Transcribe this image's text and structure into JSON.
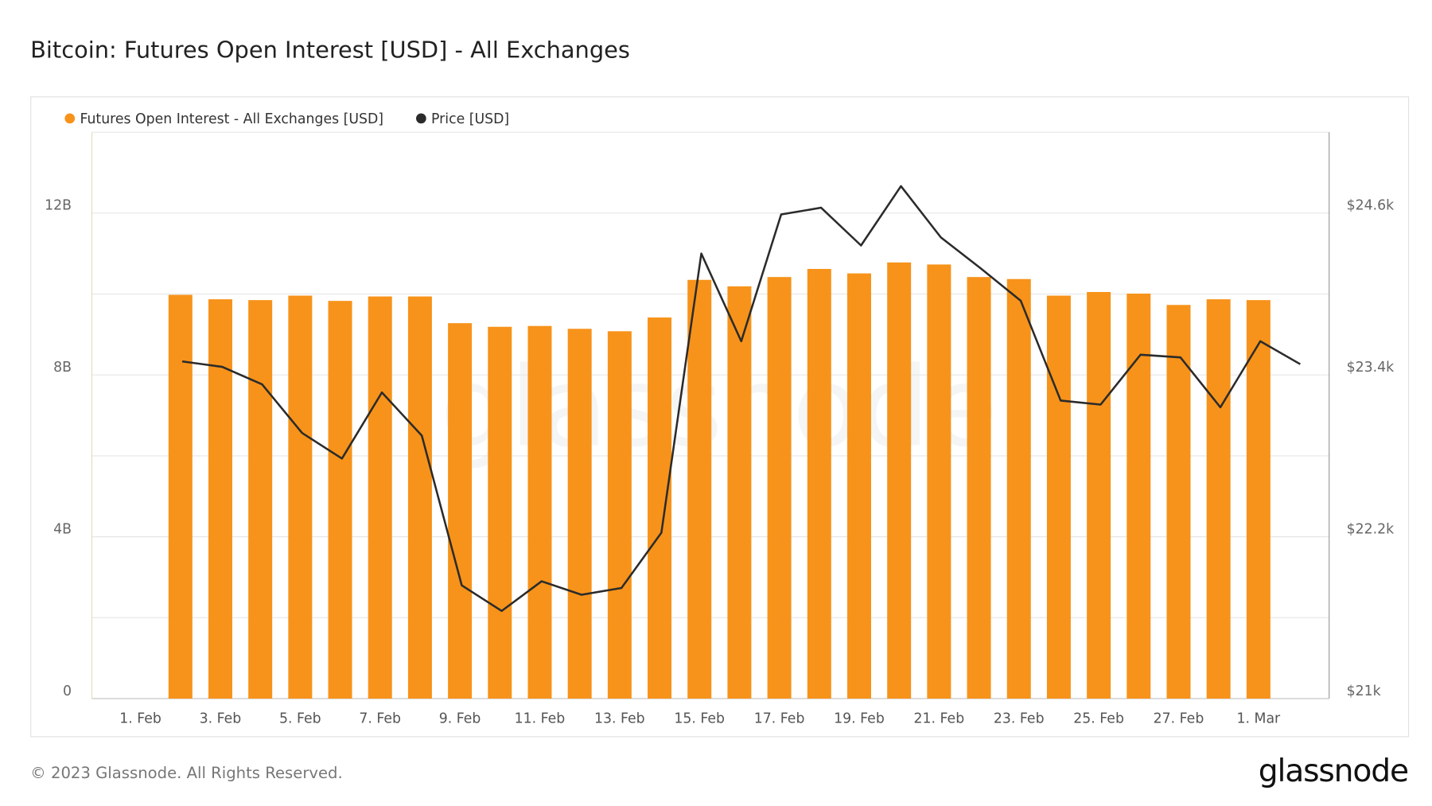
{
  "chart_data": {
    "type": "bar",
    "title": "Bitcoin: Futures Open Interest [USD] - All Exchanges",
    "watermark": "glassnode",
    "footer": "© 2023 Glassnode. All Rights Reserved.",
    "logo": "glassnode",
    "categories": [
      "1. Feb",
      null,
      "3. Feb",
      null,
      "5. Feb",
      null,
      "7. Feb",
      null,
      "9. Feb",
      null,
      "11. Feb",
      null,
      "13. Feb",
      null,
      "15. Feb",
      null,
      "17. Feb",
      null,
      "19. Feb",
      null,
      "21. Feb",
      null,
      "23. Feb",
      null,
      "25. Feb",
      null,
      "27. Feb",
      null,
      "1. Mar",
      null
    ],
    "series": [
      {
        "name": "Futures Open Interest - All Exchanges [USD]",
        "type": "bar",
        "color": "#f7931a",
        "values": [
          null,
          9980000000,
          9870000000,
          9850000000,
          9960000000,
          9830000000,
          9940000000,
          9940000000,
          9280000000,
          9190000000,
          9210000000,
          9140000000,
          9080000000,
          9420000000,
          10350000000,
          10190000000,
          10420000000,
          10620000000,
          10510000000,
          10780000000,
          10730000000,
          10420000000,
          10370000000,
          9960000000,
          10050000000,
          10010000000,
          9730000000,
          9870000000,
          9850000000,
          null
        ]
      },
      {
        "name": "Price [USD]",
        "type": "line",
        "axis": "y2",
        "color": "#2b2b2b",
        "values": [
          null,
          23500,
          23460,
          23330,
          22970,
          22780,
          23270,
          22950,
          21840,
          21650,
          21870,
          21770,
          21820,
          22230,
          24300,
          23650,
          24590,
          24640,
          24360,
          24800,
          24420,
          24190,
          23950,
          23210,
          23180,
          23550,
          23530,
          23160,
          23650,
          23480
        ]
      }
    ],
    "ylim": [
      0,
      14000000000
    ],
    "yticks": [
      0,
      {
        "value": 4000000000,
        "label": "4B"
      },
      {
        "value": 8000000000,
        "label": "8B"
      },
      {
        "value": 12000000000,
        "label": "12B"
      }
    ],
    "minor_gridlines": [
      2000000000,
      6000000000,
      10000000000,
      14000000000
    ],
    "y2lim": [
      21000,
      25200
    ],
    "y2ticks": [
      {
        "value": 21000,
        "label": "$21k"
      },
      {
        "value": 22200,
        "label": "$22.2k"
      },
      {
        "value": 23400,
        "label": "$23.4k"
      },
      {
        "value": 24600,
        "label": "$24.6k"
      }
    ],
    "grid": true,
    "legend": "top-left"
  }
}
